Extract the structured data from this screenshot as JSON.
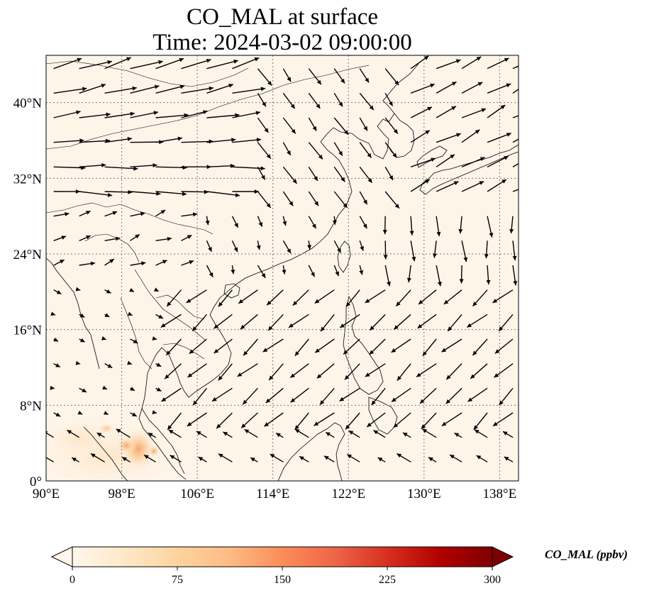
{
  "title": {
    "line1": "CO_MAL at surface",
    "line2": "Time: 2024-03-02 09:00:00"
  },
  "map": {
    "lon_range": [
      90,
      140
    ],
    "lat_range": [
      0,
      45
    ],
    "lon_ticks": [
      {
        "value": 90,
        "label": "90°E"
      },
      {
        "value": 98,
        "label": "98°E"
      },
      {
        "value": 106,
        "label": "106°E"
      },
      {
        "value": 114,
        "label": "114°E"
      },
      {
        "value": 122,
        "label": "122°E"
      },
      {
        "value": 130,
        "label": "130°E"
      },
      {
        "value": 138,
        "label": "138°E"
      }
    ],
    "lat_ticks": [
      {
        "value": 0,
        "label": "0°"
      },
      {
        "value": 8,
        "label": "8°N"
      },
      {
        "value": 16,
        "label": "16°N"
      },
      {
        "value": 24,
        "label": "24°N"
      },
      {
        "value": 32,
        "label": "32°N"
      },
      {
        "value": 40,
        "label": "40°N"
      }
    ],
    "gridlines": true,
    "background_color": "#fef5e9",
    "coast_color": "#000000",
    "grid_color": "#777777"
  },
  "colorbar": {
    "label": "CO_MAL (ppbv)",
    "range": [
      0,
      300
    ],
    "ticks": [
      {
        "value": 0,
        "label": "0"
      },
      {
        "value": 75,
        "label": "75"
      },
      {
        "value": 150,
        "label": "150"
      },
      {
        "value": 225,
        "label": "225"
      },
      {
        "value": 300,
        "label": "300"
      }
    ],
    "extend": "both",
    "colormap": "OrRd",
    "stops": [
      "#fff7ec",
      "#fee8c8",
      "#fdd49e",
      "#fdbb84",
      "#fc8d59",
      "#ef6548",
      "#d7301f",
      "#b30000",
      "#7f0000"
    ]
  },
  "high_concentration_areas": [
    {
      "lon": 99.5,
      "lat": 3.3,
      "value": 70
    },
    {
      "lon": 101.0,
      "lat": 3.2,
      "value": 60
    },
    {
      "lon": 97.5,
      "lat": 4.0,
      "value": 30
    }
  ],
  "wind_vectors_sample": [
    {
      "lon": 92,
      "lat": 35.5,
      "u": 8,
      "v": 1.5
    },
    {
      "lon": 98,
      "lat": 34.3,
      "u": 8,
      "v": 0.5
    },
    {
      "lon": 103,
      "lat": 33.2,
      "u": 6,
      "v": 0
    },
    {
      "lon": 117,
      "lat": 42.5,
      "u": 3,
      "v": -3
    },
    {
      "lon": 121,
      "lat": 41.5,
      "u": 4,
      "v": -3
    },
    {
      "lon": 130,
      "lat": 40.0,
      "u": 4,
      "v": 3
    },
    {
      "lon": 137,
      "lat": 41.3,
      "u": 7,
      "v": -0.5
    },
    {
      "lon": 127,
      "lat": 29.0,
      "u": 0,
      "v": -4
    },
    {
      "lon": 134,
      "lat": 27.0,
      "u": 0.5,
      "v": -4
    },
    {
      "lon": 118,
      "lat": 21.0,
      "u": -4,
      "v": -3
    },
    {
      "lon": 113,
      "lat": 14.0,
      "u": -5,
      "v": -4
    },
    {
      "lon": 108,
      "lat": 8.3,
      "u": -6,
      "v": -3
    },
    {
      "lon": 104,
      "lat": 9.0,
      "u": -5,
      "v": -2
    },
    {
      "lon": 110,
      "lat": 6.0,
      "u": -5,
      "v": -4
    },
    {
      "lon": 123,
      "lat": 22.0,
      "u": -3,
      "v": -4
    },
    {
      "lon": 126,
      "lat": 18.0,
      "u": -2,
      "v": -4
    }
  ]
}
